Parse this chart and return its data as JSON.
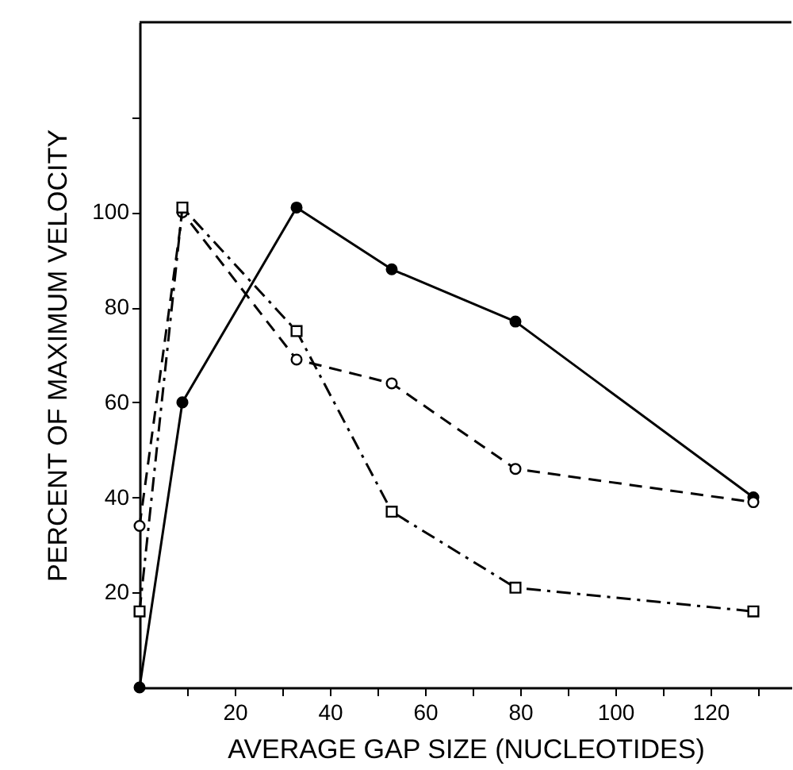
{
  "chart_data": {
    "type": "line",
    "xlabel": "AVERAGE GAP SIZE (NUCLEOTIDES)",
    "ylabel": "PERCENT OF MAXIMUM VELOCITY",
    "x": [
      0,
      9,
      33,
      53,
      79,
      129
    ],
    "xlim": [
      0,
      137
    ],
    "xticks": [
      {
        "value": 10,
        "label": null
      },
      20,
      {
        "value": 30,
        "label": null
      },
      40,
      {
        "value": 50,
        "label": null
      },
      60,
      {
        "value": 70,
        "label": null
      },
      80,
      {
        "value": 90,
        "label": null
      },
      100,
      {
        "value": 110,
        "label": null
      },
      120,
      {
        "value": 130,
        "label": null
      }
    ],
    "ylim": [
      0,
      140
    ],
    "yticks": [
      20,
      40,
      60,
      80,
      100,
      {
        "value": 120,
        "label": null
      }
    ],
    "series": [
      {
        "color": "#000000",
        "line_style": "solid",
        "marker": "circle",
        "values": [
          0,
          60,
          101,
          88,
          77,
          40
        ]
      },
      {
        "color": "#000000",
        "line_style": "dashed",
        "marker": "circle",
        "values": [
          34,
          100,
          69,
          64,
          46,
          39
        ]
      },
      {
        "color": "#000000",
        "line_style": "dotted",
        "marker": "square",
        "values": [
          16,
          101,
          75,
          37,
          21,
          16
        ]
      }
    ]
  }
}
